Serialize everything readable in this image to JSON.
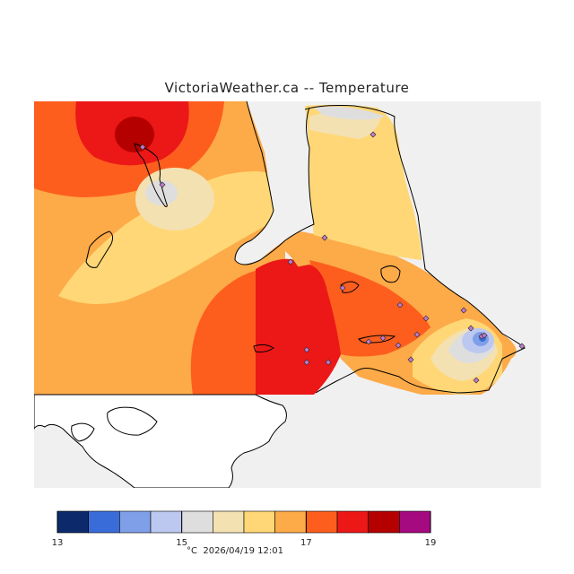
{
  "title": "VictoriaWeather.ca -- Temperature",
  "map": {
    "background": "#f0f0f0",
    "land_blank": "#ffffff",
    "coast_color": "#000000",
    "station_color": "#c07ad0"
  },
  "legend": {
    "colors": [
      "#0c2a6b",
      "#3a6cd9",
      "#7f9fe9",
      "#bcc8f0",
      "#dedede",
      "#f3e1b2",
      "#ffd776",
      "#fdaa48",
      "#fd5e1e",
      "#ec1717",
      "#b50000",
      "#a50a80"
    ],
    "min": 13,
    "max": 19,
    "ticks": [
      "13",
      "15",
      "17",
      "19"
    ],
    "unit": "°C",
    "timestamp": "2026/04/19 12:01"
  }
}
